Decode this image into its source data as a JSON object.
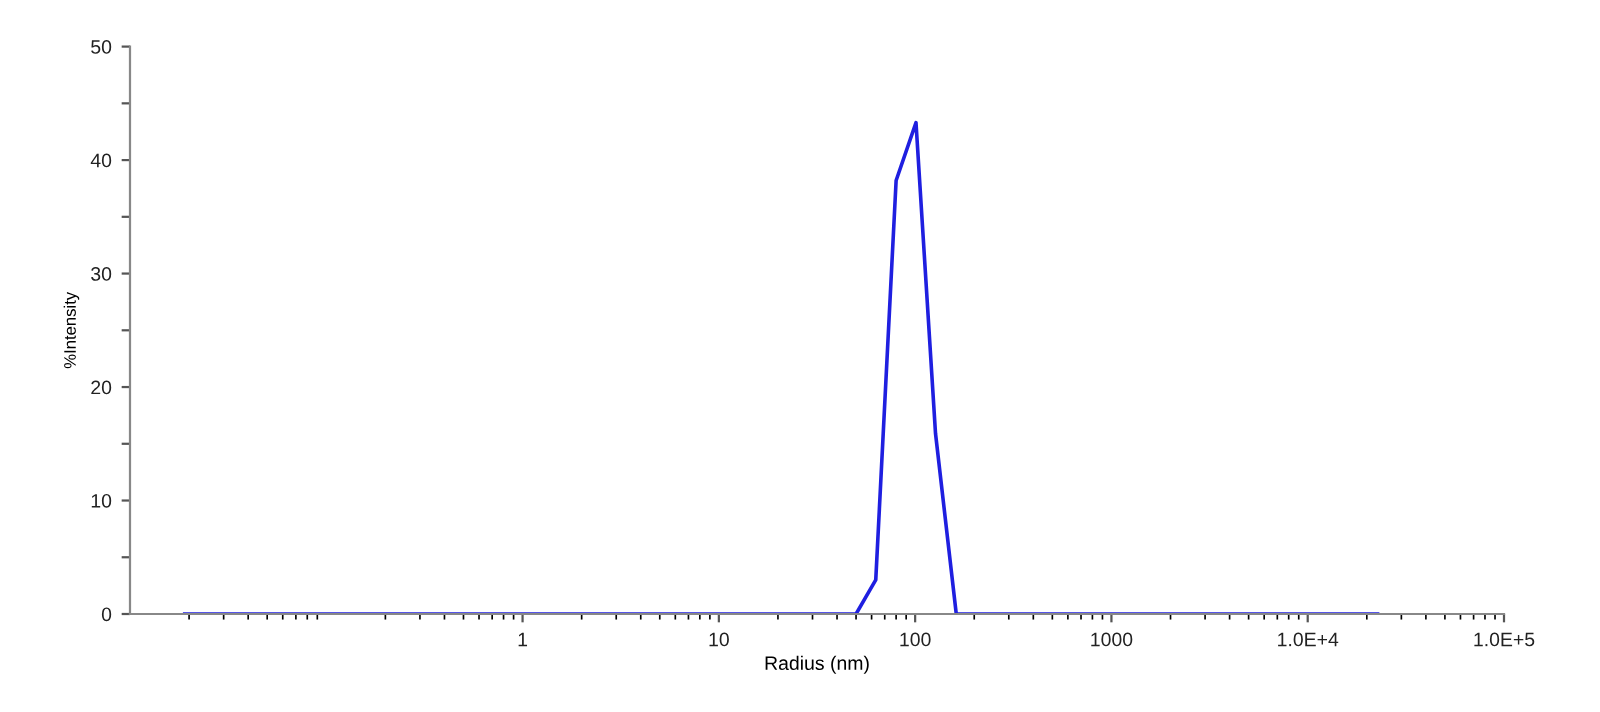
{
  "chart_data": {
    "type": "line",
    "xlabel": "Radius (nm)",
    "ylabel": "%Intensity",
    "log": "x",
    "x": [
      0.019,
      50,
      63,
      80,
      101,
      127,
      162,
      22700
    ],
    "series": [
      {
        "color": "#1f1fe0",
        "values": [
          0,
          0,
          3.0,
          38.2,
          43.3,
          15.9,
          0,
          0
        ]
      }
    ],
    "xlim": [
      0.01,
      100000
    ],
    "xticks": [
      1,
      10,
      100,
      1000,
      {
        "value": 10000,
        "label": "1.0E+4"
      },
      {
        "value": 100000,
        "label": "1.0E+5"
      }
    ],
    "ylim": [
      0,
      50
    ],
    "yticks": [
      0,
      {
        "value": 5,
        "label": null
      },
      10,
      {
        "value": 15,
        "label": null
      },
      20,
      {
        "value": 25,
        "label": null
      },
      30,
      {
        "value": 35,
        "label": null
      },
      40,
      {
        "value": 45,
        "label": null
      },
      50
    ],
    "grid": false,
    "marker": "none",
    "line_style": "solid"
  }
}
